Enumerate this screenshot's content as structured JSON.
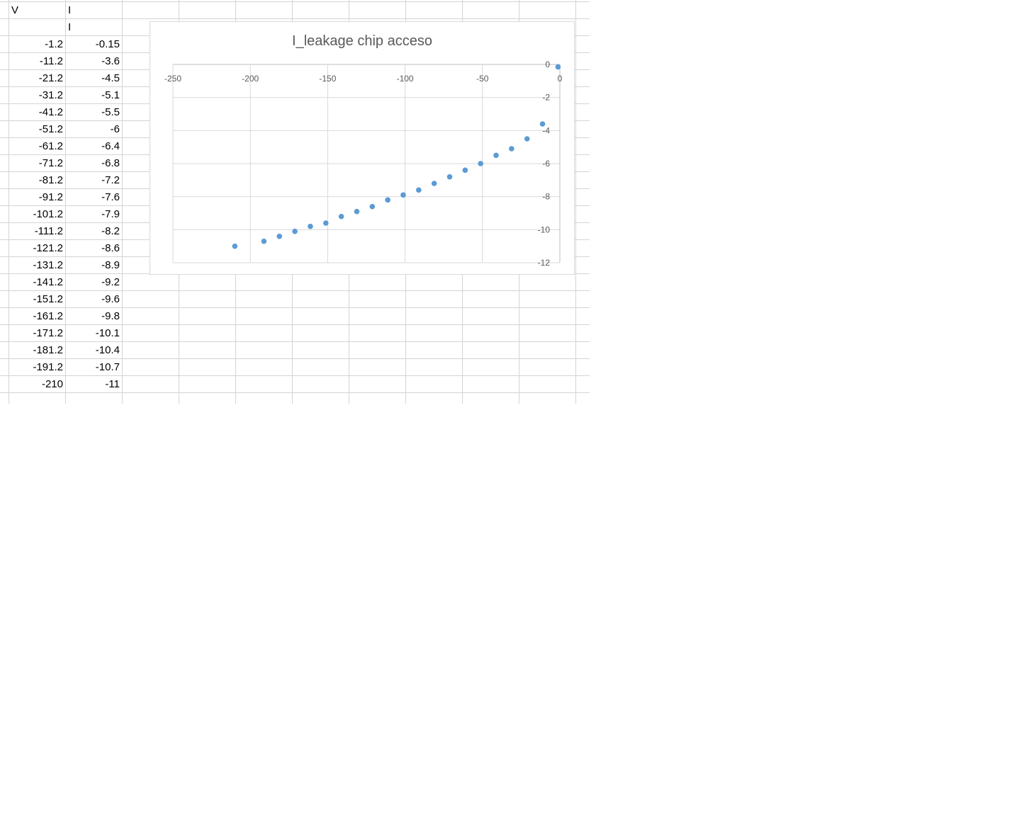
{
  "sheet": {
    "headers": {
      "col_a": "V",
      "col_b": "I",
      "col_b_row2": "I"
    },
    "rows": [
      {
        "v": "-1.2",
        "i": "-0.15"
      },
      {
        "v": "-11.2",
        "i": "-3.6"
      },
      {
        "v": "-21.2",
        "i": "-4.5"
      },
      {
        "v": "-31.2",
        "i": "-5.1"
      },
      {
        "v": "-41.2",
        "i": "-5.5"
      },
      {
        "v": "-51.2",
        "i": "-6"
      },
      {
        "v": "-61.2",
        "i": "-6.4"
      },
      {
        "v": "-71.2",
        "i": "-6.8"
      },
      {
        "v": "-81.2",
        "i": "-7.2"
      },
      {
        "v": "-91.2",
        "i": "-7.6"
      },
      {
        "v": "-101.2",
        "i": "-7.9"
      },
      {
        "v": "-111.2",
        "i": "-8.2"
      },
      {
        "v": "-121.2",
        "i": "-8.6"
      },
      {
        "v": "-131.2",
        "i": "-8.9"
      },
      {
        "v": "-141.2",
        "i": "-9.2"
      },
      {
        "v": "-151.2",
        "i": "-9.6"
      },
      {
        "v": "-161.2",
        "i": "-9.8"
      },
      {
        "v": "-171.2",
        "i": "-10.1"
      },
      {
        "v": "-181.2",
        "i": "-10.4"
      },
      {
        "v": "-191.2",
        "i": "-10.7"
      },
      {
        "v": "-210",
        "i": "-11"
      }
    ]
  },
  "chart_data": {
    "type": "scatter",
    "title": "I_leakage chip acceso",
    "xlabel": "",
    "ylabel": "",
    "xlim": [
      -250,
      0
    ],
    "ylim": [
      -12,
      0
    ],
    "xticks": [
      -250,
      -200,
      -150,
      -100,
      -50,
      0
    ],
    "yticks": [
      0,
      -2,
      -4,
      -6,
      -8,
      -10,
      -12
    ],
    "grid": "on",
    "color": "#5b9bd5",
    "x": [
      -1.2,
      -11.2,
      -21.2,
      -31.2,
      -41.2,
      -51.2,
      -61.2,
      -71.2,
      -81.2,
      -91.2,
      -101.2,
      -111.2,
      -121.2,
      -131.2,
      -141.2,
      -151.2,
      -161.2,
      -171.2,
      -181.2,
      -191.2,
      -210
    ],
    "y": [
      -0.15,
      -3.6,
      -4.5,
      -5.1,
      -5.5,
      -6,
      -6.4,
      -6.8,
      -7.2,
      -7.6,
      -7.9,
      -8.2,
      -8.6,
      -8.9,
      -9.2,
      -9.6,
      -9.8,
      -10.1,
      -10.4,
      -10.7,
      -11
    ]
  }
}
